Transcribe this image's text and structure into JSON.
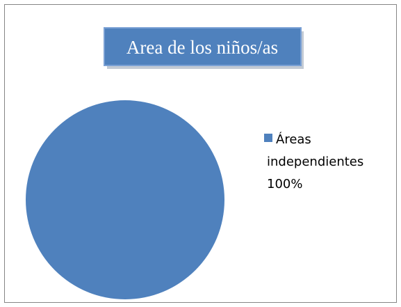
{
  "chart_data": {
    "type": "pie",
    "title": "Area de los niños/as",
    "categories": [
      "Áreas independientes"
    ],
    "values": [
      100
    ],
    "value_labels": [
      "100%"
    ],
    "colors": [
      "#4f81bd"
    ],
    "legend": "right"
  }
}
